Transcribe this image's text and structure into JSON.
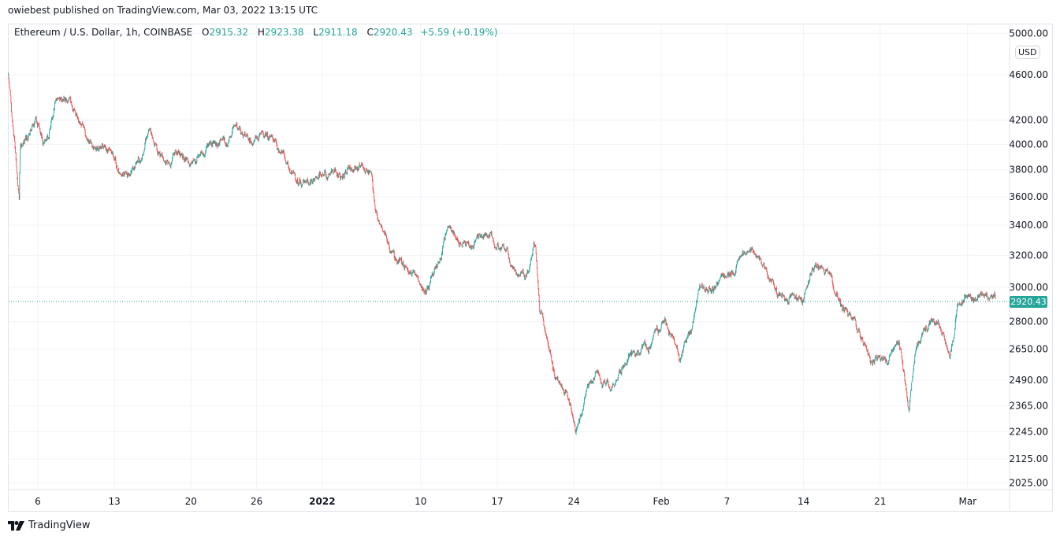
{
  "header": {
    "published": "owiebest published on TradingView.com, Mar 03, 2022 13:15 UTC"
  },
  "legend": {
    "symbol": "Ethereum / U.S. Dollar, 1h, COINBASE",
    "open_label": "O",
    "open": "2915.32",
    "high_label": "H",
    "high": "2923.38",
    "low_label": "L",
    "low": "2911.18",
    "close_label": "C",
    "close": "2920.43",
    "change": "+5.59 (+0.19%)"
  },
  "price_axis": {
    "currency": "USD",
    "current_price": "2920.43",
    "labels": [
      "5000.00",
      "4600.00",
      "4200.00",
      "4000.00",
      "3800.00",
      "3600.00",
      "3400.00",
      "3200.00",
      "3000.00",
      "2800.00",
      "2650.00",
      "2490.00",
      "2365.00",
      "2245.00",
      "2125.00",
      "2025.00"
    ]
  },
  "time_axis": {
    "labels": [
      {
        "text": "6",
        "date": "2021-12-06"
      },
      {
        "text": "13",
        "date": "2021-12-13"
      },
      {
        "text": "20",
        "date": "2021-12-20"
      },
      {
        "text": "26",
        "date": "2021-12-26"
      },
      {
        "text": "2022",
        "date": "2022-01-01",
        "bold": true
      },
      {
        "text": "10",
        "date": "2022-01-10"
      },
      {
        "text": "17",
        "date": "2022-01-17"
      },
      {
        "text": "24",
        "date": "2022-01-24"
      },
      {
        "text": "Feb",
        "date": "2022-02-01"
      },
      {
        "text": "7",
        "date": "2022-02-07"
      },
      {
        "text": "14",
        "date": "2022-02-14"
      },
      {
        "text": "21",
        "date": "2022-02-21"
      },
      {
        "text": "Mar",
        "date": "2022-03-01"
      }
    ]
  },
  "brand": {
    "name": "TradingView"
  },
  "colors": {
    "up": "#26a69a",
    "down": "#ef5350",
    "grid": "#f0f3fa",
    "border": "#e0e3eb"
  },
  "chart_data": {
    "type": "candlestick",
    "interval": "1h",
    "scale": "log",
    "ylim": [
      2000,
      5050
    ],
    "xlim": [
      "2021-12-03 05:00",
      "2022-03-03 22:00"
    ],
    "grid": true,
    "approx_closes": [
      [
        "2021-12-03 07:00",
        4600
      ],
      [
        "2021-12-04 07:00",
        3570
      ],
      [
        "2021-12-04 09:00",
        3928
      ],
      [
        "2021-12-05 19:00",
        4218
      ],
      [
        "2021-12-06 12:00",
        3987
      ],
      [
        "2021-12-07 14:00",
        4385
      ],
      [
        "2021-12-09 00:00",
        4420
      ],
      [
        "2021-12-10 02:00",
        4150
      ],
      [
        "2021-12-11 03:00",
        4021
      ],
      [
        "2021-12-12 14:00",
        4030
      ],
      [
        "2021-12-13 15:00",
        3805
      ],
      [
        "2021-12-14 09:00",
        3745
      ],
      [
        "2021-12-15 10:00",
        3866
      ],
      [
        "2021-12-16 03:00",
        4053
      ],
      [
        "2021-12-17 05:00",
        3928
      ],
      [
        "2021-12-17 22:00",
        3837
      ],
      [
        "2021-12-18 15:00",
        3957
      ],
      [
        "2021-12-20 02:00",
        3837
      ],
      [
        "2021-12-21 12:00",
        4021
      ],
      [
        "2021-12-23 07:00",
        3957
      ],
      [
        "2021-12-24 00:00",
        4116
      ],
      [
        "2021-12-25 10:00",
        4053
      ],
      [
        "2021-12-27 05:00",
        4087
      ],
      [
        "2021-12-28 07:00",
        3897
      ],
      [
        "2021-12-29 17:00",
        3745
      ],
      [
        "2021-12-30 10:00",
        3686
      ],
      [
        "2021-12-31 21:00",
        3745
      ],
      [
        "2022-01-03 00:00",
        3805
      ],
      [
        "2022-01-04 10:00",
        3837
      ],
      [
        "2022-01-05 12:00",
        3805
      ],
      [
        "2022-01-05 21:00",
        3487
      ],
      [
        "2022-01-06 14:00",
        3381
      ],
      [
        "2022-01-07 07:00",
        3195
      ],
      [
        "2022-01-08 09:00",
        3123
      ],
      [
        "2022-01-09 10:00",
        3098
      ],
      [
        "2022-01-10 12:00",
        2976
      ],
      [
        "2022-01-11 05:00",
        3123
      ],
      [
        "2022-01-12 15:00",
        3381
      ],
      [
        "2022-01-13 17:00",
        3275
      ],
      [
        "2022-01-15 03:00",
        3328
      ],
      [
        "2022-01-16 05:00",
        3328
      ],
      [
        "2022-01-17 07:00",
        3222
      ],
      [
        "2022-01-18 17:00",
        3123
      ],
      [
        "2022-01-19 19:00",
        3146
      ],
      [
        "2022-01-20 12:00",
        3250
      ],
      [
        "2022-01-20 21:00",
        2860
      ],
      [
        "2022-01-21 14:00",
        2709
      ],
      [
        "2022-01-22 07:00",
        2504
      ],
      [
        "2022-01-23 09:00",
        2424
      ],
      [
        "2022-01-24 05:00",
        2240
      ],
      [
        "2022-01-25 03:00",
        2424
      ],
      [
        "2022-01-26 05:00",
        2544
      ],
      [
        "2022-01-27 07:00",
        2442
      ],
      [
        "2022-01-28 17:00",
        2563
      ],
      [
        "2022-01-30 03:00",
        2624
      ],
      [
        "2022-01-31 05:00",
        2687
      ],
      [
        "2022-02-01 07:00",
        2791
      ],
      [
        "2022-02-02 17:00",
        2624
      ],
      [
        "2022-02-03 19:00",
        2728
      ],
      [
        "2022-02-04 12:00",
        3000
      ],
      [
        "2022-02-05 22:00",
        3024
      ],
      [
        "2022-02-07 00:00",
        3098
      ],
      [
        "2022-02-08 02:00",
        3170
      ],
      [
        "2022-02-09 12:00",
        3222
      ],
      [
        "2022-02-10 14:00",
        3098
      ],
      [
        "2022-02-11 15:00",
        2930
      ],
      [
        "2022-02-12 17:00",
        2930
      ],
      [
        "2022-02-13 19:00",
        2908
      ],
      [
        "2022-02-14 21:00",
        3123
      ],
      [
        "2022-02-16 07:00",
        3098
      ],
      [
        "2022-02-17 09:00",
        2908
      ],
      [
        "2022-02-18 10:00",
        2791
      ],
      [
        "2022-02-19 21:00",
        2645
      ],
      [
        "2022-02-20 22:00",
        2624
      ],
      [
        "2022-02-21 15:00",
        2585
      ],
      [
        "2022-02-22 17:00",
        2709
      ],
      [
        "2022-02-23 15:00",
        2346
      ],
      [
        "2022-02-24 03:00",
        2585
      ],
      [
        "2022-02-25 05:00",
        2772
      ],
      [
        "2022-02-26 07:00",
        2791
      ],
      [
        "2022-02-27 09:00",
        2604
      ],
      [
        "2022-02-28 02:00",
        2883
      ],
      [
        "2022-02-28 19:00",
        2976
      ],
      [
        "2022-03-01 21:00",
        2940
      ],
      [
        "2022-03-03 13:00",
        2920.43
      ]
    ]
  }
}
